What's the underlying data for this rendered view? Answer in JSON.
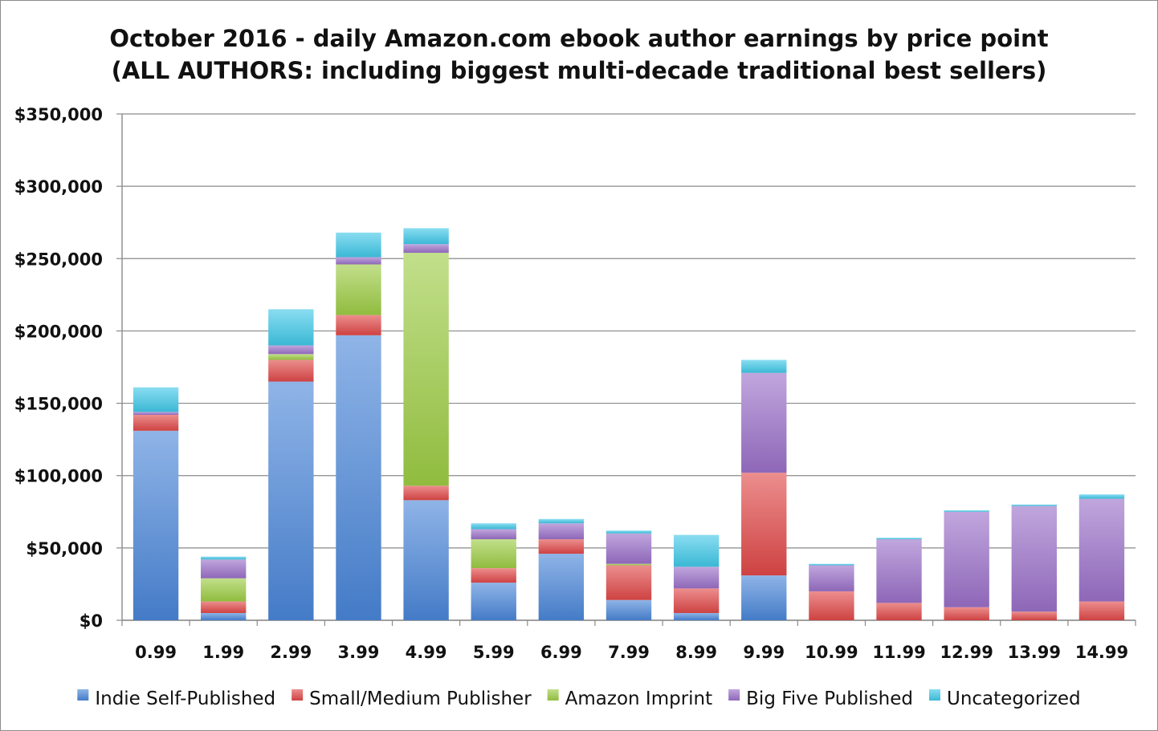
{
  "chart_data": {
    "type": "bar",
    "stacked": true,
    "title": [
      "October 2016 - daily Amazon.com ebook author earnings by price point",
      "(ALL AUTHORS: including biggest multi-decade traditional best sellers)"
    ],
    "xlabel": "",
    "ylabel": "",
    "ylim": [
      0,
      350000
    ],
    "yticks": [
      0,
      50000,
      100000,
      150000,
      200000,
      250000,
      300000,
      350000
    ],
    "ytick_labels": [
      "$0",
      "$50,000",
      "$100,000",
      "$150,000",
      "$200,000",
      "$250,000",
      "$300,000",
      "$350,000"
    ],
    "grid": true,
    "legend_position": "bottom",
    "categories": [
      "0.99",
      "1.99",
      "2.99",
      "3.99",
      "4.99",
      "5.99",
      "6.99",
      "7.99",
      "8.99",
      "9.99",
      "10.99",
      "11.99",
      "12.99",
      "13.99",
      "14.99"
    ],
    "series": [
      {
        "name": "Indie Self-Published",
        "color": "#4a86d8",
        "values": [
          131000,
          5000,
          165000,
          197000,
          83000,
          26000,
          46000,
          14000,
          5000,
          31000,
          0,
          0,
          0,
          0,
          0
        ]
      },
      {
        "name": "Small/Medium Publisher",
        "color": "#e04848",
        "values": [
          11000,
          8000,
          15000,
          14000,
          10000,
          10000,
          10000,
          24000,
          17000,
          71000,
          20000,
          12000,
          9000,
          6000,
          13000
        ]
      },
      {
        "name": "Amazon Imprint",
        "color": "#9ccc44",
        "values": [
          0,
          16000,
          4000,
          35000,
          161000,
          20000,
          0,
          1000,
          0,
          0,
          0,
          0,
          0,
          0,
          0
        ]
      },
      {
        "name": "Big Five Published",
        "color": "#9a70c8",
        "values": [
          2000,
          13000,
          6000,
          5000,
          6000,
          7000,
          11000,
          21000,
          15000,
          69000,
          18000,
          44000,
          66000,
          73000,
          71000
        ]
      },
      {
        "name": "Uncategorized",
        "color": "#40c8e8",
        "values": [
          17000,
          2000,
          25000,
          17000,
          11000,
          4000,
          3000,
          2000,
          22000,
          9000,
          1000,
          1000,
          1000,
          1000,
          3000
        ]
      }
    ]
  }
}
